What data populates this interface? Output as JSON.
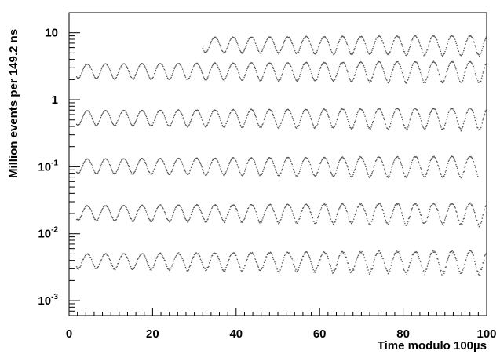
{
  "chart_data": {
    "type": "scatter",
    "title": "",
    "xlabel": "Time modulo 100µs",
    "ylabel": "Million events per 149.2 ns",
    "xlim": [
      0,
      100
    ],
    "ylim": [
      0.0006,
      20
    ],
    "y_scale": "log",
    "grid": false,
    "x_ticks": [
      0,
      20,
      40,
      60,
      80,
      100
    ],
    "x_tick_labels": [
      "0",
      "20",
      "40",
      "60",
      "80",
      "100"
    ],
    "y_ticks": [
      {
        "value": 10,
        "base": "10",
        "exp": ""
      },
      {
        "value": 1,
        "base": "1",
        "exp": ""
      },
      {
        "value": 0.1,
        "base": "10",
        "exp": "-1"
      },
      {
        "value": 0.01,
        "base": "10",
        "exp": "-2"
      },
      {
        "value": 0.001,
        "base": "10",
        "exp": "-3"
      }
    ],
    "wiggle_period_us": 4.365,
    "series": [
      {
        "x_start": 32.0,
        "x_end": 100,
        "center": 6.8,
        "amplitude": 0.22,
        "noise": 0.02,
        "decay": 0.005
      },
      {
        "x_start": 1.8,
        "x_end": 100,
        "center": 2.75,
        "amplitude": 0.24,
        "noise": 0.02,
        "decay": 0.005
      },
      {
        "x_start": 1.8,
        "x_end": 100,
        "center": 0.55,
        "amplitude": 0.24,
        "noise": 0.02,
        "decay": 0.005
      },
      {
        "x_start": 1.8,
        "x_end": 98,
        "center": 0.105,
        "amplitude": 0.24,
        "noise": 0.02,
        "decay": 0.005
      },
      {
        "x_start": 1.8,
        "x_end": 100,
        "center": 0.021,
        "amplitude": 0.24,
        "noise": 0.03,
        "decay": 0.005
      },
      {
        "x_start": 1.8,
        "x_end": 100,
        "center": 0.004,
        "amplitude": 0.24,
        "noise": 0.04,
        "decay": 0.006
      }
    ]
  }
}
